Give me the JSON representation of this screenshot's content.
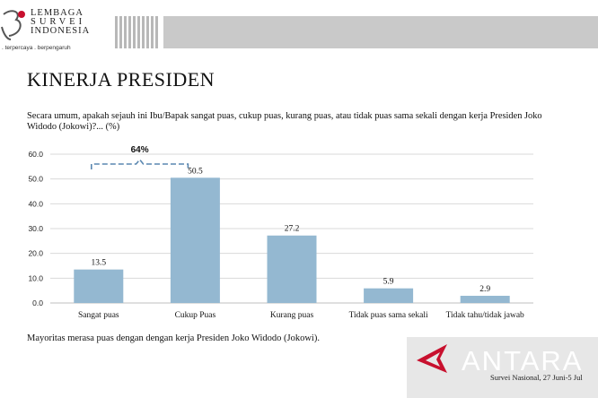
{
  "header": {
    "logo_lines": [
      "LEMBAGA",
      "SURVEI",
      "INDONESIA"
    ],
    "tagline": ". terpercaya . berpengaruh"
  },
  "title": "KINERJA PRESIDEN",
  "question": "Secara umum, apakah sejauh ini Ibu/Bapak sangat puas, cukup puas, kurang puas, atau tidak puas sama sekali dengan kerja Presiden Joko Widodo (Jokowi)?... (%)",
  "footer_note": "Mayoritas merasa puas dengan dengan kerja Presiden Joko Widodo (Jokowi).",
  "watermark": {
    "brand": "ANTARA",
    "survey": "Survei Nasional, 27 Juni-5 Jul"
  },
  "colors": {
    "bar": "#94b8d1",
    "bracket": "#5a87b0",
    "grid": "#d9d9d9"
  },
  "chart_data": {
    "type": "bar",
    "title": "",
    "xlabel": "",
    "ylabel": "",
    "categories": [
      "Sangat puas",
      "Cukup Puas",
      "Kurang puas",
      "Tidak puas sama sekali",
      "Tidak tahu/tidak jawab"
    ],
    "values": [
      13.5,
      50.5,
      27.2,
      5.9,
      2.9
    ],
    "data_labels": [
      "13.5",
      "50.5",
      "27.2",
      "5.9",
      "2.9"
    ],
    "ylim": [
      0,
      60
    ],
    "yticks": [
      "0.0",
      "10.0",
      "20.0",
      "30.0",
      "40.0",
      "50.0",
      "60.0"
    ],
    "grid": true,
    "annotation": {
      "text": "64%",
      "spans": [
        "Sangat puas",
        "Cukup Puas"
      ]
    }
  }
}
